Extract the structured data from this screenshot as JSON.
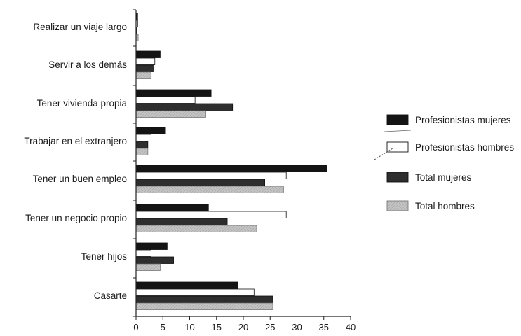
{
  "chart_data": {
    "type": "bar",
    "orientation": "horizontal",
    "categories": [
      "Realizar un viaje largo",
      "Servir a los demás",
      "Tener vivienda propia",
      "Trabajar en el extranjero",
      "Tener un buen empleo",
      "Tener un negocio propio",
      "Tener hijos",
      "Casarte"
    ],
    "series": [
      {
        "name": "Profesionistas mujeres",
        "color": "#141414",
        "values": [
          0.3,
          4.5,
          14,
          5.5,
          35.5,
          13.5,
          5.8,
          19
        ]
      },
      {
        "name": "Profesionistas hombres",
        "color": "#ffffff",
        "values": [
          0.3,
          3.5,
          11,
          2.8,
          28,
          28,
          2.8,
          22
        ]
      },
      {
        "name": "Total mujeres",
        "color": "#2e2e2e",
        "values": [
          0.2,
          3.2,
          18,
          2.2,
          24,
          17,
          7,
          25.5
        ]
      },
      {
        "name": "Total hombres",
        "color": "#bdbdbd",
        "values": [
          0.4,
          2.8,
          13,
          2.2,
          27.5,
          22.5,
          4.5,
          25.5
        ]
      }
    ],
    "xlim": [
      0,
      40
    ],
    "xticks": [
      "0",
      "5",
      "10",
      "15",
      "20",
      "25",
      "30",
      "35",
      "40"
    ],
    "title": "",
    "xlabel": "",
    "ylabel": "",
    "grid": false,
    "legend_position": "right"
  }
}
